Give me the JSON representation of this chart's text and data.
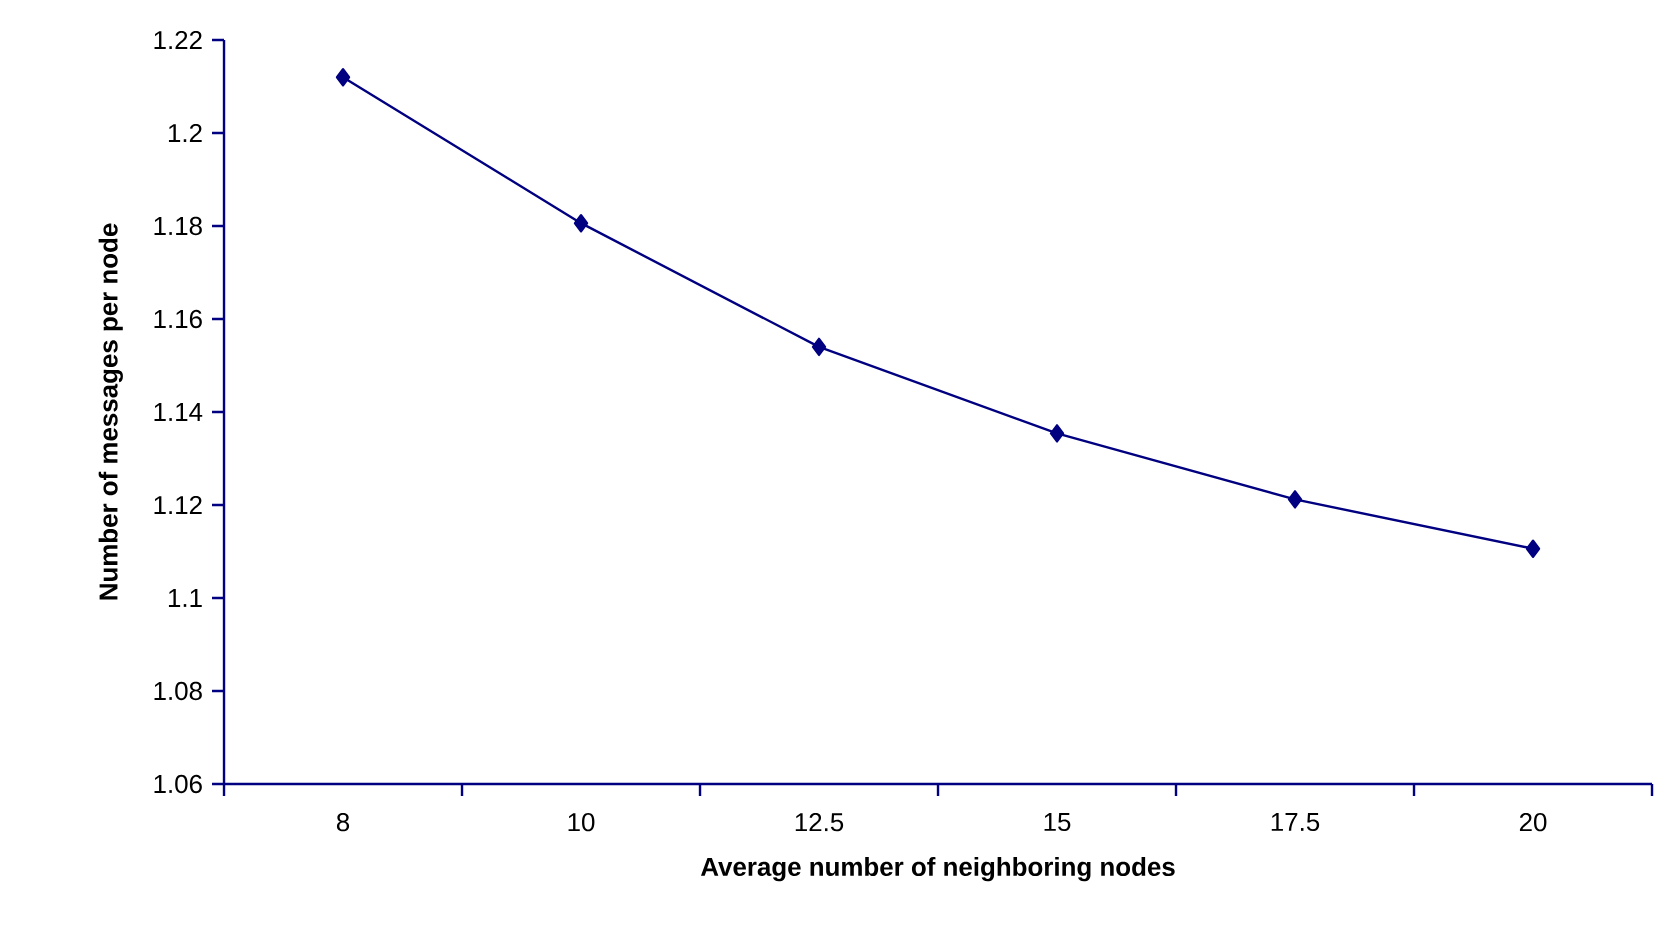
{
  "chart_data": {
    "type": "line",
    "xlabel": "Average number of neighboring nodes",
    "ylabel": "Number of messages per node",
    "categories": [
      "8",
      "10",
      "12.5",
      "15",
      "17.5",
      "20"
    ],
    "values": [
      1.212,
      1.1806,
      1.154,
      1.1354,
      1.1212,
      1.1106
    ],
    "color": "#000080",
    "marker": "diamond",
    "line_style": "solid",
    "grid": false,
    "ylim": [
      1.06,
      1.22
    ],
    "yticks": [
      1.06,
      1.08,
      1.1,
      1.12,
      1.14,
      1.16,
      1.18,
      1.2,
      1.22
    ]
  }
}
